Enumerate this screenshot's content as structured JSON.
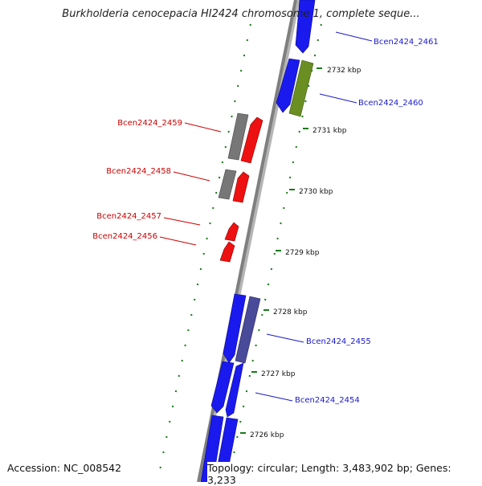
{
  "header": {
    "title": "Burkholderia cenocepacia HI2424 chromosome 1, complete seque..."
  },
  "footer": {
    "accession": "Accession: NC_008542",
    "topology": "Topology: circular; Length: 3,483,902 bp; Genes: 3,233"
  },
  "colors": {
    "backbone": "#8a8a8a",
    "tick_dots": "#1a7a1a",
    "gene_blue": "#1a1aee",
    "gene_red": "#ee1111",
    "gene_grey": "#777777",
    "gene_olive": "#6b8e23",
    "gene_slate": "#4a4a9a",
    "label_blue": "#1a1acc",
    "label_red": "#cc0000"
  },
  "ticks": [
    "2732 kbp",
    "2731 kbp",
    "2730 kbp",
    "2729 kbp",
    "2728 kbp",
    "2727 kbp",
    "2726 kbp"
  ],
  "genes": [
    {
      "name": "Bcen2424_2461",
      "color": "blue",
      "side": "right"
    },
    {
      "name": "Bcen2424_2460",
      "color": "olive",
      "side": "right"
    },
    {
      "name": "Bcen2424_2459",
      "color": "red",
      "side": "left"
    },
    {
      "name": "Bcen2424_2458",
      "color": "red",
      "side": "left"
    },
    {
      "name": "Bcen2424_2457",
      "color": "red",
      "side": "left"
    },
    {
      "name": "Bcen2424_2456",
      "color": "red",
      "side": "left"
    },
    {
      "name": "Bcen2424_2455",
      "color": "slate",
      "side": "right"
    },
    {
      "name": "Bcen2424_2454",
      "color": "blue",
      "side": "right"
    }
  ]
}
